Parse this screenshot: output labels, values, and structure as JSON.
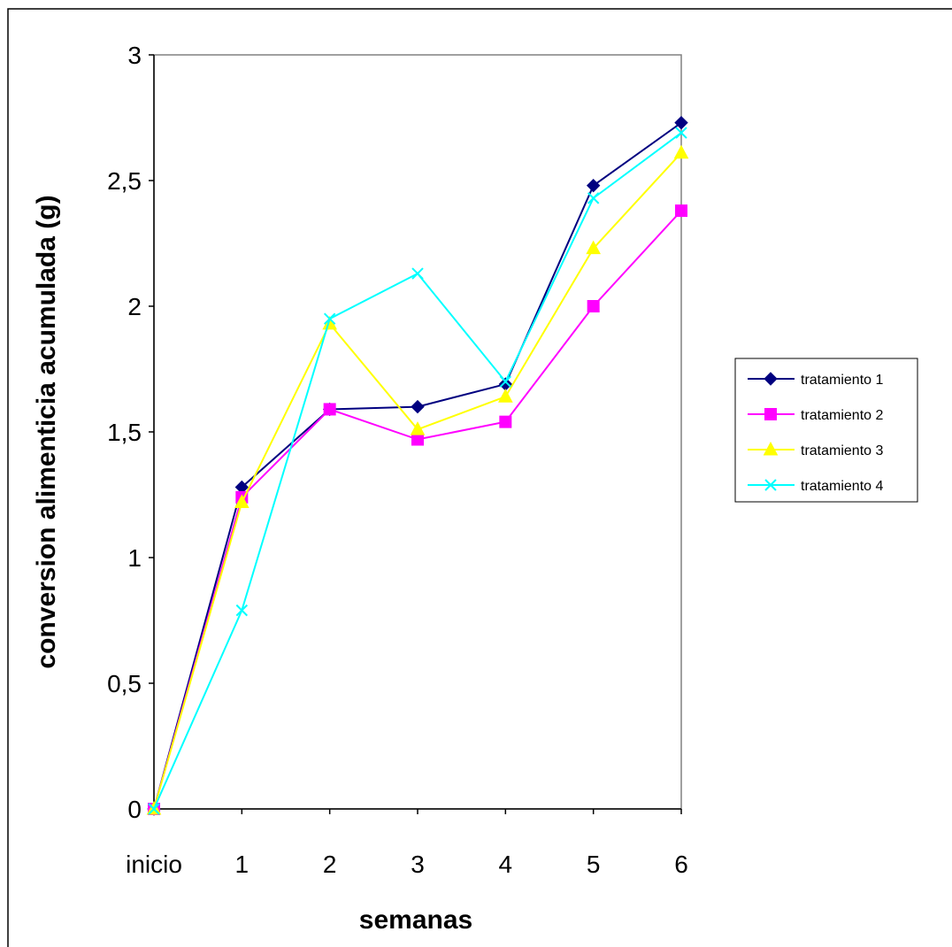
{
  "chart_data": {
    "type": "line",
    "xlabel": "semanas",
    "ylabel": "conversion alimenticia acumulada (g)",
    "categories": [
      "inicio",
      "1",
      "2",
      "3",
      "4",
      "5",
      "6"
    ],
    "ylim": [
      0,
      3
    ],
    "yticks": [
      "0",
      "0,5",
      "1",
      "1,5",
      "2",
      "2,5",
      "3"
    ],
    "ytick_values": [
      0,
      0.5,
      1,
      1.5,
      2,
      2.5,
      3
    ],
    "grid": false,
    "legend_position": "right",
    "series": [
      {
        "name": "tratamiento 1",
        "color": "#000080",
        "marker": "diamond",
        "values": [
          0,
          1.28,
          1.59,
          1.6,
          1.69,
          2.48,
          2.73
        ]
      },
      {
        "name": "tratamiento 2",
        "color": "#FF00FF",
        "marker": "square",
        "values": [
          0,
          1.24,
          1.59,
          1.47,
          1.54,
          2.0,
          2.38
        ]
      },
      {
        "name": "tratamiento 3",
        "color": "#FFFF00",
        "marker": "triangle",
        "values": [
          0,
          1.22,
          1.93,
          1.51,
          1.64,
          2.23,
          2.61
        ]
      },
      {
        "name": "tratamiento 4",
        "color": "#00FFFF",
        "marker": "x",
        "values": [
          0,
          0.79,
          1.95,
          2.13,
          1.7,
          2.43,
          2.69
        ]
      }
    ]
  }
}
